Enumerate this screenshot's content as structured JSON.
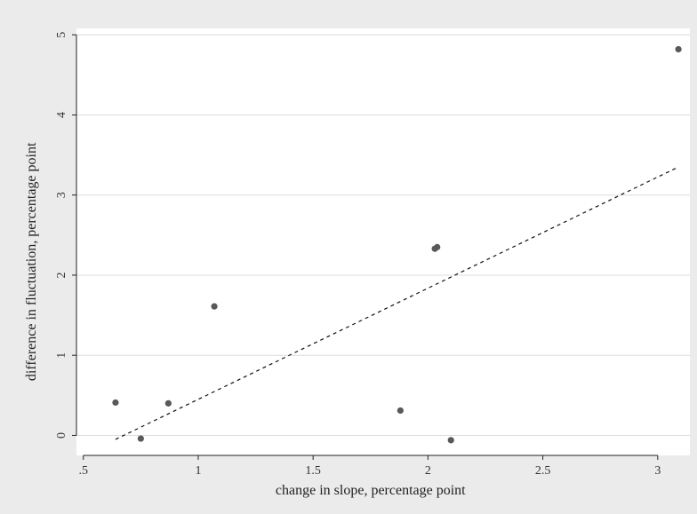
{
  "chart_data": {
    "type": "scatter",
    "title": "",
    "xlabel": "change in slope, percentage point",
    "ylabel": "difference in fluctuation, percentage point",
    "xlim": [
      0.47,
      3.14
    ],
    "ylim": [
      -0.25,
      5.08
    ],
    "xticks": [
      {
        "value": 0.5,
        "label": ".5"
      },
      {
        "value": 1,
        "label": "1"
      },
      {
        "value": 1.5,
        "label": "1.5"
      },
      {
        "value": 2,
        "label": "2"
      },
      {
        "value": 2.5,
        "label": "2.5"
      },
      {
        "value": 3,
        "label": "3"
      }
    ],
    "yticks": [
      {
        "value": 0,
        "label": "0"
      },
      {
        "value": 1,
        "label": "1"
      },
      {
        "value": 2,
        "label": "2"
      },
      {
        "value": 3,
        "label": "3"
      },
      {
        "value": 4,
        "label": "4"
      },
      {
        "value": 5,
        "label": "5"
      }
    ],
    "grid": "horizontal",
    "series": [
      {
        "kind": "scatter",
        "color": "#595959",
        "points": [
          {
            "x": 0.64,
            "y": 0.41
          },
          {
            "x": 0.75,
            "y": -0.04
          },
          {
            "x": 0.87,
            "y": 0.4
          },
          {
            "x": 1.07,
            "y": 1.61
          },
          {
            "x": 1.88,
            "y": 0.31
          },
          {
            "x": 2.03,
            "y": 2.33
          },
          {
            "x": 2.04,
            "y": 2.35
          },
          {
            "x": 2.1,
            "y": -0.06
          },
          {
            "x": 3.09,
            "y": 4.82
          }
        ]
      },
      {
        "kind": "fit_line",
        "style": "dashed",
        "color": "#111111",
        "x": [
          0.64,
          3.09
        ],
        "y": [
          -0.05,
          3.35
        ]
      }
    ]
  },
  "colors": {
    "outer_background": "#ebebeb",
    "plot_background": "#ffffff",
    "gridline": "#dcdcdc",
    "axis": "#222222"
  }
}
